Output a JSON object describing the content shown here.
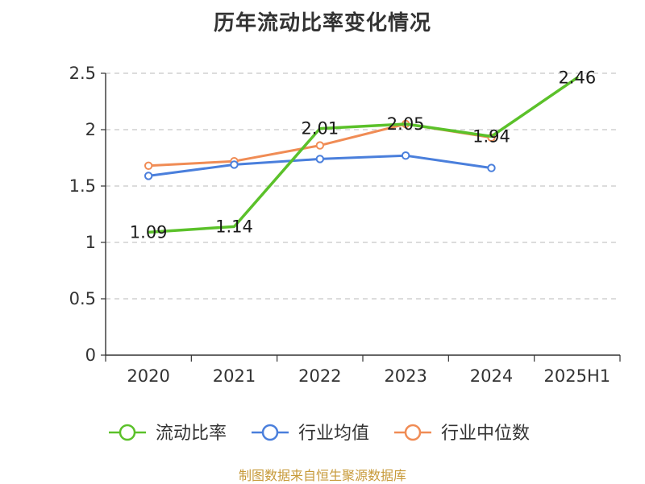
{
  "title": "历年流动比率变化情况",
  "footer": "制图数据来自恒生聚源数据库",
  "chart_data": {
    "type": "line",
    "title": "历年流动比率变化情况",
    "xlabel": "",
    "ylabel": "",
    "categories": [
      "2020",
      "2021",
      "2022",
      "2023",
      "2024",
      "2025H1"
    ],
    "ylim": [
      0,
      2.5
    ],
    "yticks": [
      "0",
      "0.5",
      "1",
      "1.5",
      "2",
      "2.5"
    ],
    "ytick_values": [
      0,
      0.5,
      1,
      1.5,
      2,
      2.5
    ],
    "grid": true,
    "legend_position": "bottom",
    "series": [
      {
        "name": "流动比率",
        "color": "#5bc12a",
        "values": [
          1.09,
          1.14,
          2.01,
          2.05,
          1.94,
          2.46
        ],
        "labels": [
          "1.09",
          "1.14",
          "2.01",
          "2.05",
          "1.94",
          "2.46"
        ]
      },
      {
        "name": "行业均值",
        "color": "#4a7fdc",
        "values": [
          1.59,
          1.69,
          1.74,
          1.77,
          1.66,
          null
        ],
        "labels": []
      },
      {
        "name": "行业中位数",
        "color": "#f08c55",
        "values": [
          1.68,
          1.72,
          1.86,
          2.05,
          1.93,
          null
        ],
        "labels": []
      }
    ]
  }
}
